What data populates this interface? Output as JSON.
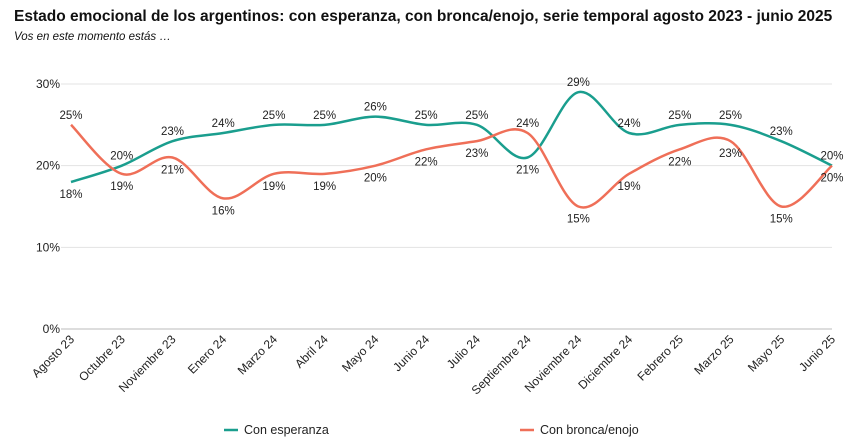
{
  "chart_data": {
    "type": "line",
    "title": "Estado emocional de los argentinos: con esperanza, con bronca/enojo, serie temporal agosto 2023 - junio 2025",
    "subtitle": "Vos en este momento estás …",
    "categories": [
      "Agosto 23",
      "Octubre 23",
      "Noviembre 23",
      "Enero 24",
      "Marzo 24",
      "Abril 24",
      "Mayo 24",
      "Junio 24",
      "Julio 24",
      "Septiembre 24",
      "Noviembre 24",
      "Diciembre 24",
      "Febrero 25",
      "Marzo 25",
      "Mayo 25",
      "Junio 25"
    ],
    "series": [
      {
        "name": "Con esperanza",
        "color": "#1a9e8e",
        "values": [
          18,
          20,
          23,
          24,
          25,
          25,
          26,
          25,
          25,
          21,
          29,
          24,
          25,
          25,
          23,
          20
        ]
      },
      {
        "name": "Con bronca/enojo",
        "color": "#ef6f58",
        "values": [
          25,
          19,
          21,
          16,
          19,
          19,
          20,
          22,
          23,
          24,
          15,
          19,
          22,
          23,
          15,
          20
        ]
      }
    ],
    "yticks": [
      "0%",
      "10%",
      "20%",
      "30%"
    ],
    "ylim": [
      0,
      30
    ],
    "unit": "%",
    "grid": true,
    "legend": "bottom"
  }
}
